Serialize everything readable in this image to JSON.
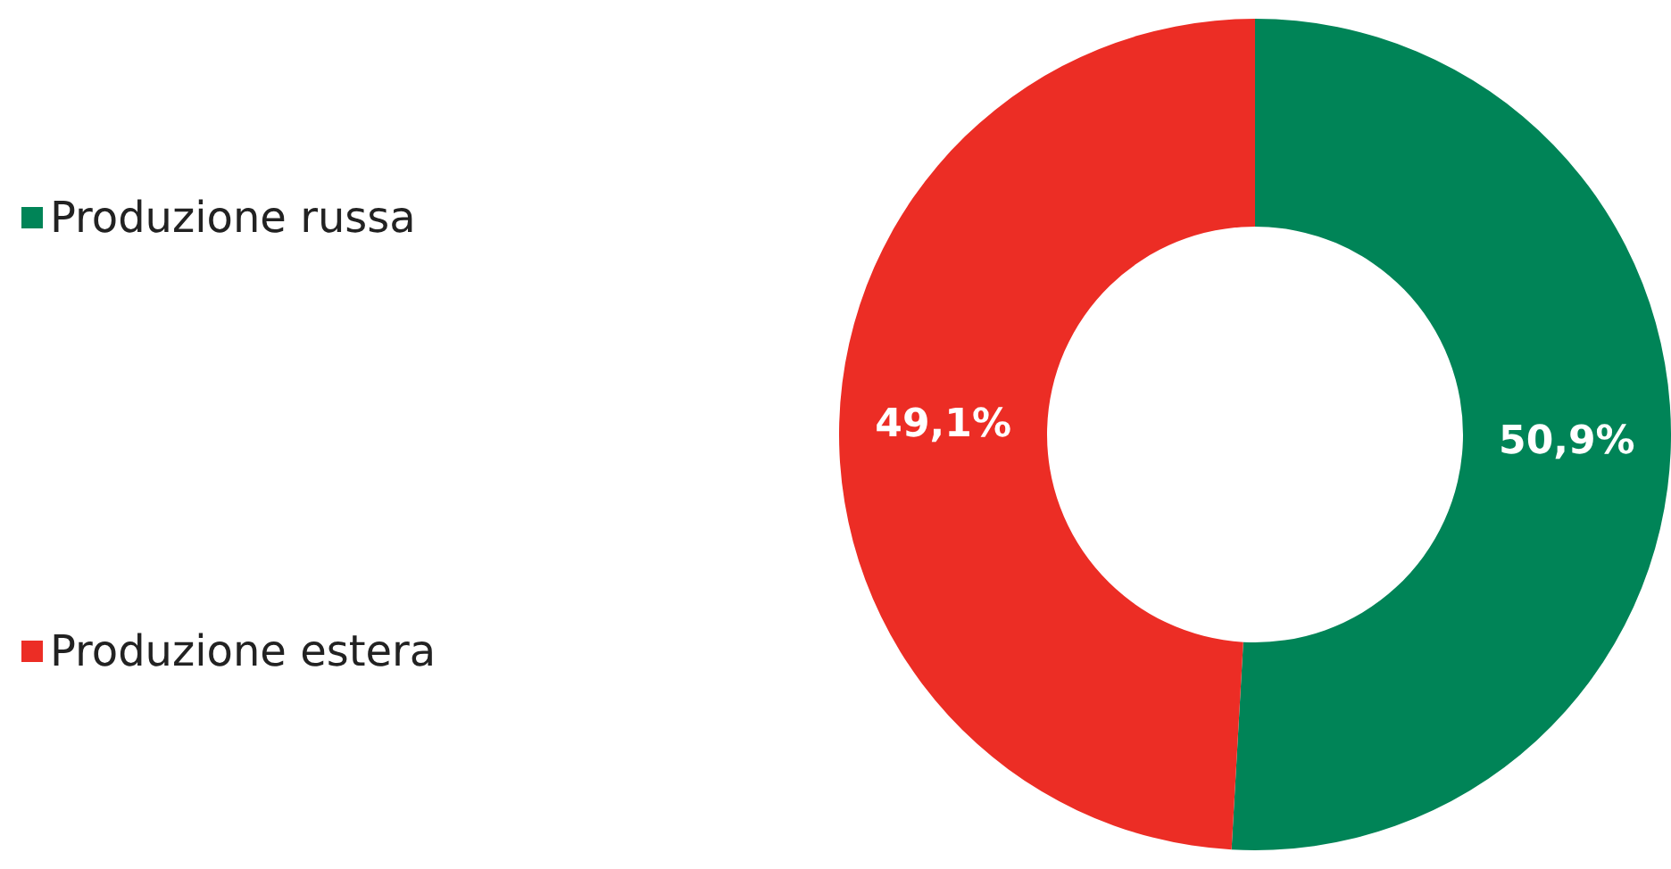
{
  "chart_data": {
    "type": "donut",
    "categories": [
      "Produzione russa",
      "Produzione estera"
    ],
    "values": [
      50.9,
      49.1
    ],
    "colors": [
      "#008457",
      "#ec2d25"
    ],
    "value_labels": [
      "50,9%",
      "49,1%"
    ],
    "legend": "left"
  }
}
